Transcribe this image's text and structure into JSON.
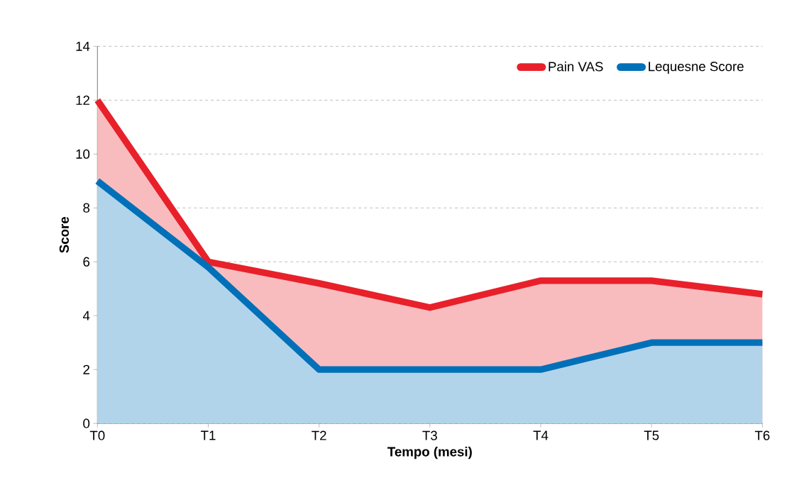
{
  "chart_data": {
    "type": "area",
    "xlabel": "Tempo (mesi)",
    "ylabel": "Score",
    "categories": [
      "T0",
      "T1",
      "T2",
      "T3",
      "T4",
      "T5",
      "T6"
    ],
    "series": [
      {
        "name": "Pain VAS",
        "color": "#e8202a",
        "values": [
          12,
          6,
          5.2,
          4.3,
          5.3,
          5.3,
          4.8
        ]
      },
      {
        "name": "Lequesne Score",
        "color": "#0070b8",
        "values": [
          9,
          5.8,
          2,
          2,
          2,
          3,
          3
        ]
      }
    ],
    "ylim": [
      0,
      14
    ],
    "yticks": [
      0,
      2,
      4,
      6,
      8,
      10,
      12,
      14
    ],
    "grid": "y",
    "legend": "top right",
    "line_style": "solid"
  }
}
